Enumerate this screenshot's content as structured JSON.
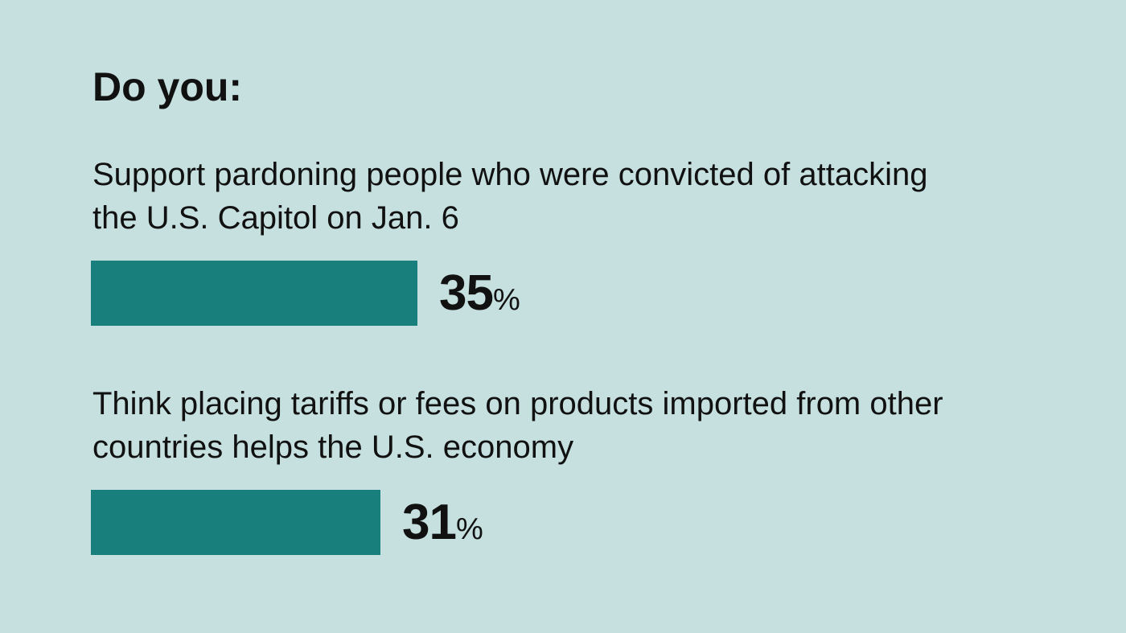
{
  "chart_data": {
    "type": "bar",
    "orientation": "horizontal",
    "title": "Do you:",
    "categories": [
      "Support pardoning people who were convicted of attacking the U.S. Capitol on Jan. 6",
      "Think placing tariffs or fees on products imported from other countries helps the U.S. economy"
    ],
    "values": [
      35,
      31
    ],
    "value_labels": [
      "35",
      "31"
    ],
    "unit": "%",
    "xlim": [
      0,
      100
    ],
    "grid": false,
    "legend": "none",
    "bar_color": "#197f7c",
    "background_color": "#c5e0df"
  }
}
